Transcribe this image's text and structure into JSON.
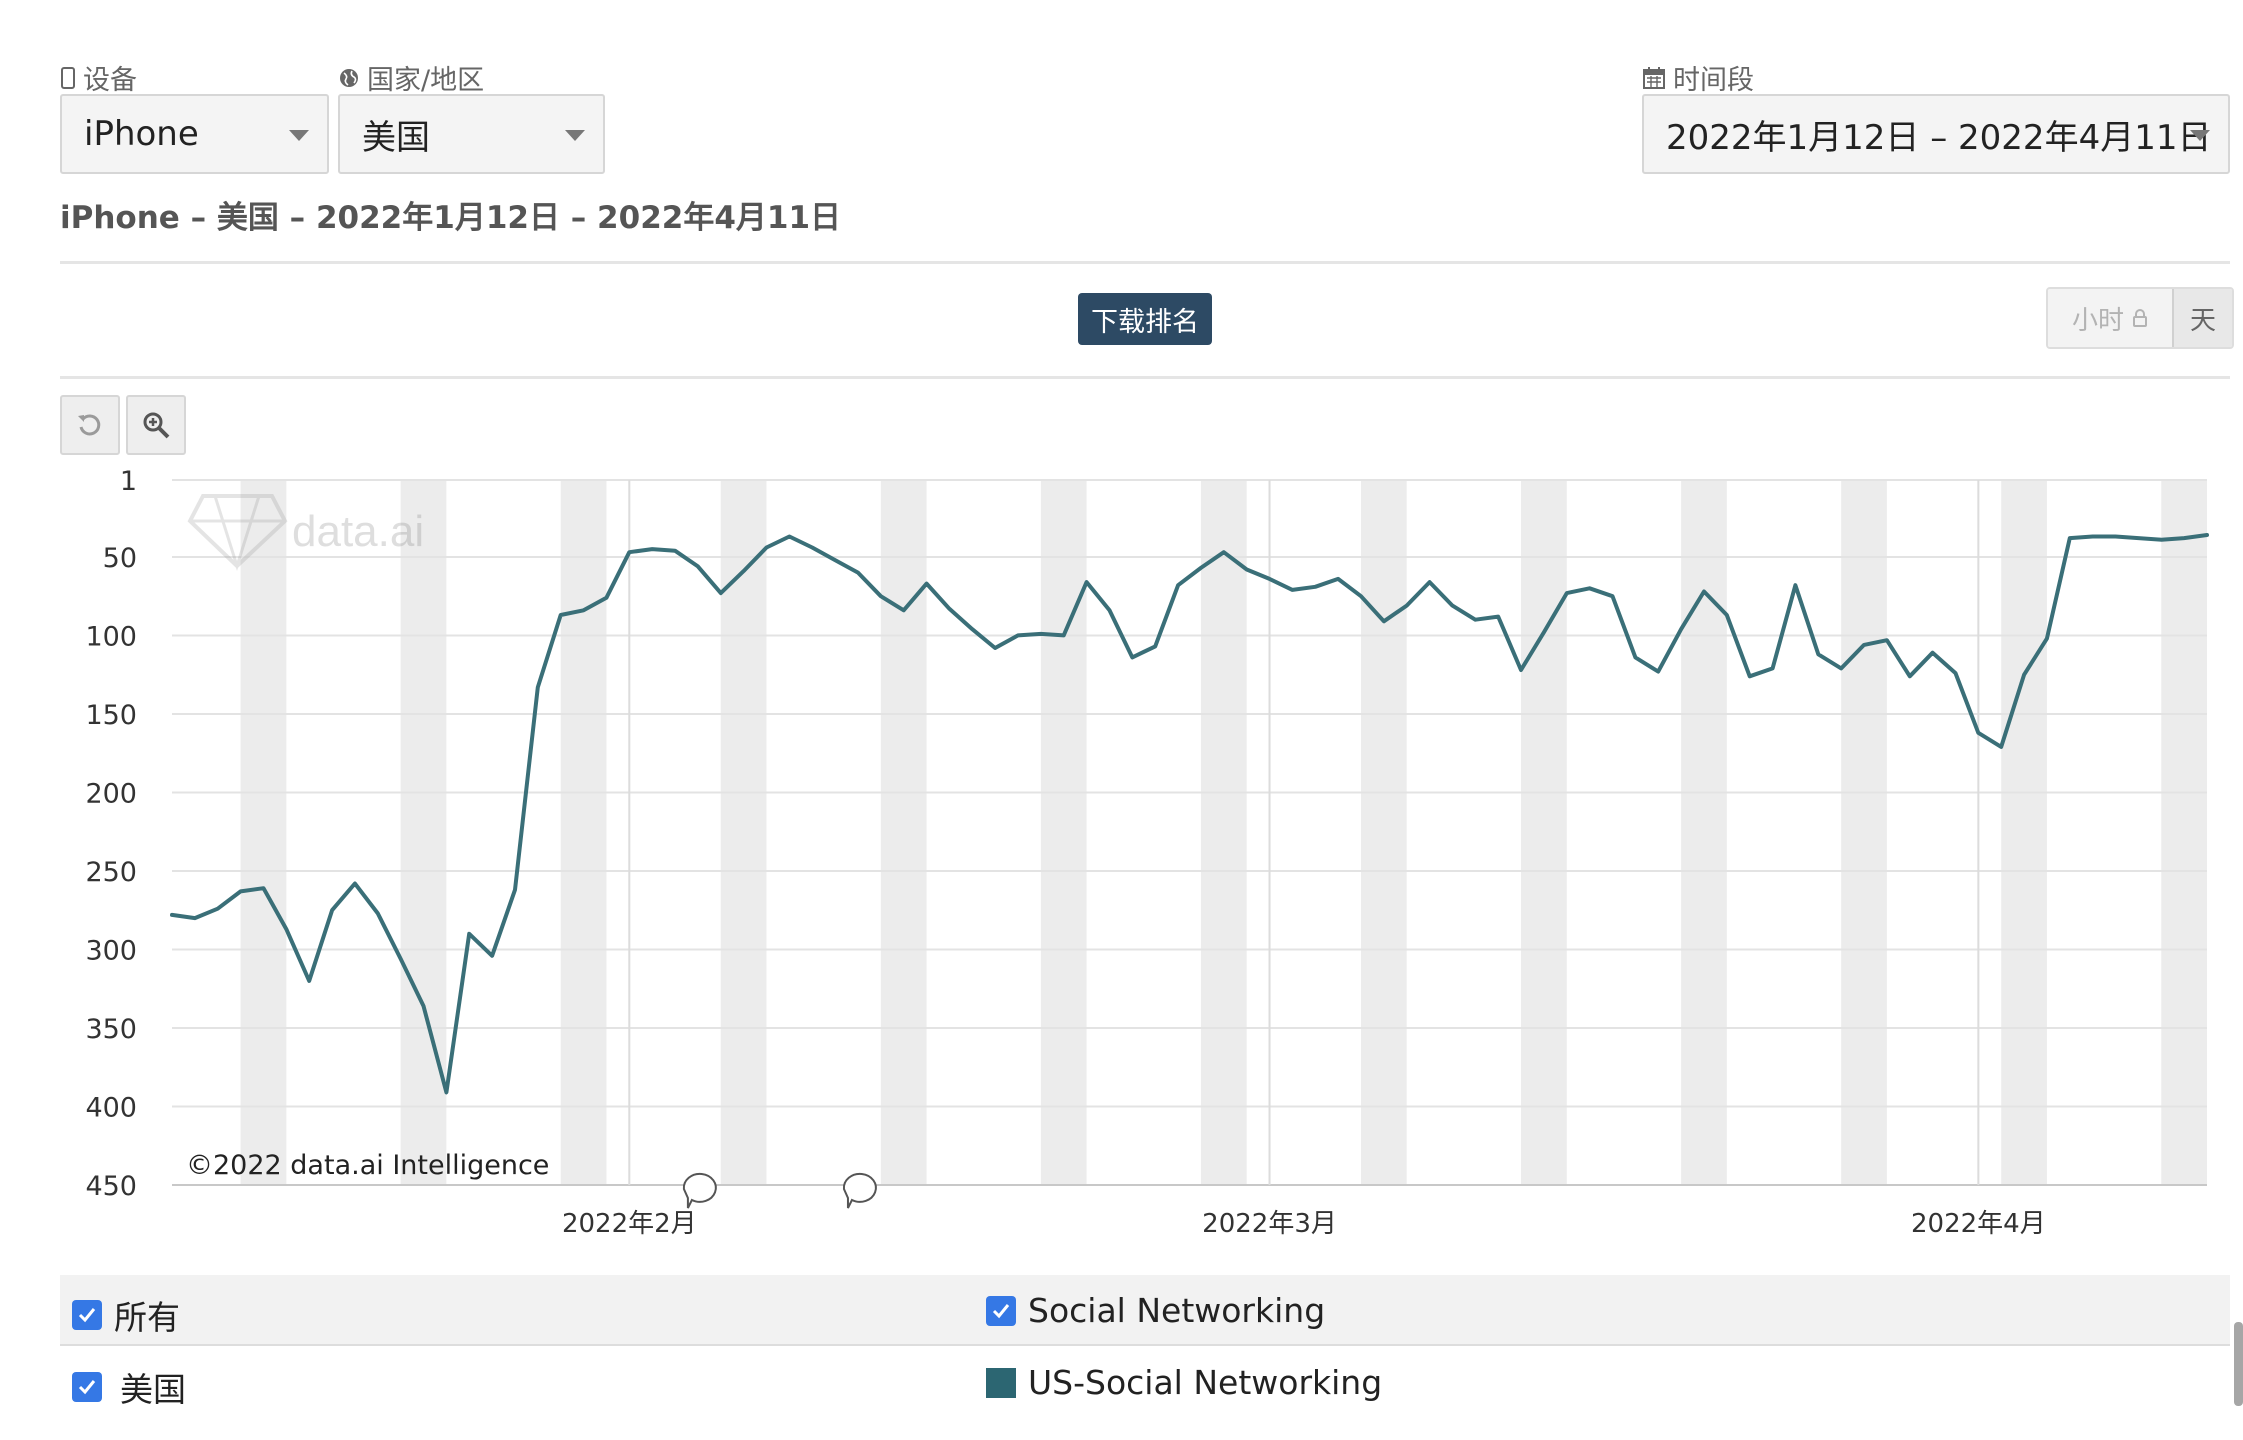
{
  "filters": {
    "device": {
      "label": "设备",
      "value": "iPhone"
    },
    "country": {
      "label": "国家/地区",
      "value": "美国"
    },
    "period": {
      "label": "时间段",
      "value": "2022年1月12日 – 2022年4月11日"
    }
  },
  "subtitle": "iPhone – 美国 – 2022年1月12日 – 2022年4月11日",
  "rank_type": "下载排名",
  "granularity": {
    "hour": "小时",
    "day": "天",
    "selected": "day",
    "hour_locked": true
  },
  "watermark": "data.ai",
  "copyright": "©2022 data.ai Intelligence",
  "legend": {
    "all": "所有",
    "category": "Social Networking",
    "country": "美国",
    "series": "US-Social Networking"
  },
  "colors": {
    "line": "#3a6f78",
    "badge": "#2d4a64",
    "checkbox": "#3578e5",
    "weekend_band": "#ececec",
    "swatch": "#2c6672"
  },
  "icons": [
    "mobile-icon",
    "globe-icon",
    "calendar-icon",
    "reset-zoom-icon",
    "zoom-in-icon",
    "lock-icon",
    "comment-icon",
    "checkbox-icon"
  ],
  "chart_data": {
    "type": "line",
    "x_start": "2022-01-12",
    "x_end": "2022-04-11",
    "y_reversed": true,
    "ylim": [
      1,
      450
    ],
    "yticks": [
      1,
      50,
      100,
      150,
      200,
      250,
      300,
      350,
      400,
      450
    ],
    "xtick_labels": [
      {
        "date": "2022-02-01",
        "label": "2022年2月"
      },
      {
        "date": "2022-03-01",
        "label": "2022年3月"
      },
      {
        "date": "2022-04-01",
        "label": "2022年4月"
      }
    ],
    "weekend_bands": [
      "2022-01-15",
      "2022-01-22",
      "2022-01-29",
      "2022-02-05",
      "2022-02-12",
      "2022-02-19",
      "2022-02-26",
      "2022-03-05",
      "2022-03-12",
      "2022-03-19",
      "2022-03-26",
      "2022-04-02",
      "2022-04-09"
    ],
    "note_markers": [
      "2022-02-04",
      "2022-02-11"
    ],
    "grid": true,
    "series": [
      {
        "name": "US-Social Networking",
        "values": [
          [
            "2022-01-12",
            278
          ],
          [
            "2022-01-13",
            280
          ],
          [
            "2022-01-14",
            274
          ],
          [
            "2022-01-15",
            263
          ],
          [
            "2022-01-16",
            261
          ],
          [
            "2022-01-17",
            287
          ],
          [
            "2022-01-18",
            320
          ],
          [
            "2022-01-19",
            275
          ],
          [
            "2022-01-20",
            258
          ],
          [
            "2022-01-21",
            277
          ],
          [
            "2022-01-22",
            306
          ],
          [
            "2022-01-23",
            336
          ],
          [
            "2022-01-24",
            391
          ],
          [
            "2022-01-25",
            290
          ],
          [
            "2022-01-26",
            304
          ],
          [
            "2022-01-27",
            262
          ],
          [
            "2022-01-28",
            133
          ],
          [
            "2022-01-29",
            87
          ],
          [
            "2022-01-30",
            84
          ],
          [
            "2022-01-31",
            76
          ],
          [
            "2022-02-01",
            47
          ],
          [
            "2022-02-02",
            45
          ],
          [
            "2022-02-03",
            46
          ],
          [
            "2022-02-04",
            56
          ],
          [
            "2022-02-05",
            73
          ],
          [
            "2022-02-06",
            59
          ],
          [
            "2022-02-07",
            44
          ],
          [
            "2022-02-08",
            37
          ],
          [
            "2022-02-09",
            44
          ],
          [
            "2022-02-10",
            52
          ],
          [
            "2022-02-11",
            60
          ],
          [
            "2022-02-12",
            75
          ],
          [
            "2022-02-13",
            84
          ],
          [
            "2022-02-14",
            67
          ],
          [
            "2022-02-15",
            83
          ],
          [
            "2022-02-16",
            96
          ],
          [
            "2022-02-17",
            108
          ],
          [
            "2022-02-18",
            100
          ],
          [
            "2022-02-19",
            99
          ],
          [
            "2022-02-20",
            100
          ],
          [
            "2022-02-21",
            66
          ],
          [
            "2022-02-22",
            84
          ],
          [
            "2022-02-23",
            114
          ],
          [
            "2022-02-24",
            107
          ],
          [
            "2022-02-25",
            68
          ],
          [
            "2022-02-26",
            57
          ],
          [
            "2022-02-27",
            47
          ],
          [
            "2022-02-28",
            58
          ],
          [
            "2022-03-01",
            64
          ],
          [
            "2022-03-02",
            71
          ],
          [
            "2022-03-03",
            69
          ],
          [
            "2022-03-04",
            64
          ],
          [
            "2022-03-05",
            75
          ],
          [
            "2022-03-06",
            91
          ],
          [
            "2022-03-07",
            81
          ],
          [
            "2022-03-08",
            66
          ],
          [
            "2022-03-09",
            81
          ],
          [
            "2022-03-10",
            90
          ],
          [
            "2022-03-11",
            88
          ],
          [
            "2022-03-12",
            122
          ],
          [
            "2022-03-13",
            98
          ],
          [
            "2022-03-14",
            73
          ],
          [
            "2022-03-15",
            70
          ],
          [
            "2022-03-16",
            75
          ],
          [
            "2022-03-17",
            114
          ],
          [
            "2022-03-18",
            123
          ],
          [
            "2022-03-19",
            96
          ],
          [
            "2022-03-20",
            72
          ],
          [
            "2022-03-21",
            87
          ],
          [
            "2022-03-22",
            126
          ],
          [
            "2022-03-23",
            121
          ],
          [
            "2022-03-24",
            68
          ],
          [
            "2022-03-25",
            112
          ],
          [
            "2022-03-26",
            121
          ],
          [
            "2022-03-27",
            106
          ],
          [
            "2022-03-28",
            103
          ],
          [
            "2022-03-29",
            126
          ],
          [
            "2022-03-30",
            111
          ],
          [
            "2022-03-31",
            124
          ],
          [
            "2022-04-01",
            162
          ],
          [
            "2022-04-02",
            171
          ],
          [
            "2022-04-03",
            125
          ],
          [
            "2022-04-04",
            102
          ],
          [
            "2022-04-05",
            38
          ],
          [
            "2022-04-06",
            37
          ],
          [
            "2022-04-07",
            37
          ],
          [
            "2022-04-08",
            38
          ],
          [
            "2022-04-09",
            39
          ],
          [
            "2022-04-10",
            38
          ],
          [
            "2022-04-11",
            36
          ]
        ]
      }
    ]
  }
}
